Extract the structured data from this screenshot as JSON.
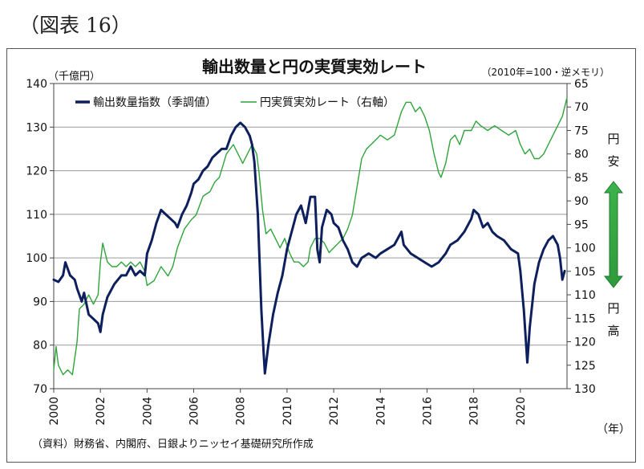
{
  "figure_label": "（図表 16）",
  "chart_data": {
    "type": "line",
    "title": "輸出数量と円の実質実効レート",
    "left_unit": "（千億円）",
    "right_unit": "（2010年=100・逆メモリ）",
    "x_unit": "（年）",
    "source": "（資料）財務省、内閣府、日銀よりニッセイ基礎研究所作成",
    "yen_weak_label": [
      "円",
      "安"
    ],
    "yen_strong_label": [
      "円",
      "高"
    ],
    "legend_position": "top-left",
    "grid": true,
    "xlim": [
      2000,
      2022
    ],
    "x_ticks": [
      2000,
      2002,
      2004,
      2006,
      2008,
      2010,
      2012,
      2014,
      2016,
      2018,
      2020
    ],
    "ylim_left": [
      70,
      140
    ],
    "y_ticks_left": [
      70,
      80,
      90,
      100,
      110,
      120,
      130,
      140
    ],
    "ylim_right": [
      65,
      130
    ],
    "right_axis_inverted": true,
    "y_ticks_right": [
      65,
      70,
      75,
      80,
      85,
      90,
      95,
      100,
      105,
      110,
      115,
      120,
      125,
      130
    ],
    "series": [
      {
        "name": "輸出数量指数（季調値）",
        "axis": "left",
        "color": "#0d1f5c",
        "points": [
          [
            2000.0,
            95
          ],
          [
            2000.2,
            94.5
          ],
          [
            2000.4,
            96
          ],
          [
            2000.5,
            99
          ],
          [
            2000.7,
            96
          ],
          [
            2000.9,
            95
          ],
          [
            2001.0,
            93
          ],
          [
            2001.2,
            90
          ],
          [
            2001.3,
            92
          ],
          [
            2001.5,
            87
          ],
          [
            2001.7,
            86
          ],
          [
            2001.9,
            85
          ],
          [
            2002.0,
            83
          ],
          [
            2002.1,
            87
          ],
          [
            2002.3,
            91
          ],
          [
            2002.6,
            94
          ],
          [
            2002.9,
            96
          ],
          [
            2003.1,
            96
          ],
          [
            2003.3,
            98
          ],
          [
            2003.5,
            96
          ],
          [
            2003.7,
            97
          ],
          [
            2003.9,
            96
          ],
          [
            2004.0,
            101
          ],
          [
            2004.2,
            104
          ],
          [
            2004.4,
            108
          ],
          [
            2004.6,
            111
          ],
          [
            2004.8,
            110
          ],
          [
            2005.0,
            109
          ],
          [
            2005.2,
            108
          ],
          [
            2005.3,
            107
          ],
          [
            2005.5,
            110
          ],
          [
            2005.7,
            112
          ],
          [
            2005.9,
            115
          ],
          [
            2006.0,
            117
          ],
          [
            2006.2,
            118
          ],
          [
            2006.4,
            120
          ],
          [
            2006.6,
            121
          ],
          [
            2006.8,
            123
          ],
          [
            2007.0,
            124
          ],
          [
            2007.2,
            125
          ],
          [
            2007.4,
            125
          ],
          [
            2007.6,
            128
          ],
          [
            2007.8,
            130
          ],
          [
            2008.0,
            131
          ],
          [
            2008.2,
            130
          ],
          [
            2008.4,
            128
          ],
          [
            2008.5,
            126
          ],
          [
            2008.6,
            122
          ],
          [
            2008.75,
            110
          ],
          [
            2008.9,
            88
          ],
          [
            2009.0,
            78
          ],
          [
            2009.05,
            73.5
          ],
          [
            2009.2,
            80
          ],
          [
            2009.4,
            87
          ],
          [
            2009.6,
            92
          ],
          [
            2009.8,
            96
          ],
          [
            2010.0,
            102
          ],
          [
            2010.2,
            106
          ],
          [
            2010.4,
            110
          ],
          [
            2010.6,
            112
          ],
          [
            2010.8,
            108
          ],
          [
            2011.0,
            114
          ],
          [
            2011.2,
            114
          ],
          [
            2011.3,
            102
          ],
          [
            2011.4,
            99
          ],
          [
            2011.5,
            107
          ],
          [
            2011.7,
            111
          ],
          [
            2011.9,
            110
          ],
          [
            2012.0,
            108
          ],
          [
            2012.2,
            107
          ],
          [
            2012.4,
            104
          ],
          [
            2012.6,
            102
          ],
          [
            2012.8,
            99
          ],
          [
            2013.0,
            98
          ],
          [
            2013.2,
            100
          ],
          [
            2013.5,
            101
          ],
          [
            2013.8,
            100
          ],
          [
            2014.0,
            101
          ],
          [
            2014.3,
            102
          ],
          [
            2014.6,
            103
          ],
          [
            2014.9,
            106
          ],
          [
            2015.0,
            103
          ],
          [
            2015.3,
            101
          ],
          [
            2015.6,
            100
          ],
          [
            2015.9,
            99
          ],
          [
            2016.2,
            98
          ],
          [
            2016.5,
            99
          ],
          [
            2016.8,
            101
          ],
          [
            2017.0,
            103
          ],
          [
            2017.3,
            104
          ],
          [
            2017.6,
            106
          ],
          [
            2017.9,
            109
          ],
          [
            2018.0,
            111
          ],
          [
            2018.2,
            110
          ],
          [
            2018.4,
            107
          ],
          [
            2018.6,
            108
          ],
          [
            2018.8,
            106
          ],
          [
            2019.0,
            105
          ],
          [
            2019.3,
            104
          ],
          [
            2019.6,
            102
          ],
          [
            2019.9,
            101
          ],
          [
            2020.0,
            97
          ],
          [
            2020.15,
            88
          ],
          [
            2020.3,
            76
          ],
          [
            2020.4,
            84
          ],
          [
            2020.6,
            94
          ],
          [
            2020.8,
            99
          ],
          [
            2021.0,
            102
          ],
          [
            2021.2,
            104
          ],
          [
            2021.4,
            105
          ],
          [
            2021.6,
            103
          ],
          [
            2021.7,
            100
          ],
          [
            2021.8,
            95
          ],
          [
            2021.9,
            97
          ]
        ]
      },
      {
        "name": "円実質実効レート（右軸）",
        "axis": "right",
        "color": "#2ea43a",
        "points": [
          [
            2000.0,
            126
          ],
          [
            2000.1,
            121
          ],
          [
            2000.2,
            125
          ],
          [
            2000.4,
            127
          ],
          [
            2000.6,
            126
          ],
          [
            2000.8,
            127
          ],
          [
            2001.0,
            120
          ],
          [
            2001.1,
            113
          ],
          [
            2001.3,
            112
          ],
          [
            2001.5,
            110
          ],
          [
            2001.7,
            112
          ],
          [
            2001.9,
            110
          ],
          [
            2002.0,
            103
          ],
          [
            2002.1,
            99
          ],
          [
            2002.3,
            103
          ],
          [
            2002.5,
            104
          ],
          [
            2002.7,
            104
          ],
          [
            2002.9,
            103
          ],
          [
            2003.1,
            104
          ],
          [
            2003.3,
            103
          ],
          [
            2003.5,
            104
          ],
          [
            2003.7,
            103
          ],
          [
            2003.9,
            105
          ],
          [
            2004.0,
            108
          ],
          [
            2004.3,
            107
          ],
          [
            2004.6,
            104
          ],
          [
            2004.9,
            106
          ],
          [
            2005.1,
            104
          ],
          [
            2005.3,
            100
          ],
          [
            2005.6,
            96
          ],
          [
            2005.9,
            94
          ],
          [
            2006.1,
            93
          ],
          [
            2006.4,
            89
          ],
          [
            2006.7,
            88
          ],
          [
            2006.9,
            86
          ],
          [
            2007.1,
            85
          ],
          [
            2007.4,
            80
          ],
          [
            2007.7,
            78
          ],
          [
            2007.9,
            80
          ],
          [
            2008.1,
            82
          ],
          [
            2008.3,
            80
          ],
          [
            2008.5,
            78
          ],
          [
            2008.7,
            80
          ],
          [
            2008.8,
            84
          ],
          [
            2008.95,
            92
          ],
          [
            2009.1,
            97
          ],
          [
            2009.3,
            96
          ],
          [
            2009.5,
            98
          ],
          [
            2009.7,
            100
          ],
          [
            2009.9,
            98
          ],
          [
            2010.1,
            101
          ],
          [
            2010.3,
            103
          ],
          [
            2010.5,
            103
          ],
          [
            2010.7,
            104
          ],
          [
            2010.9,
            103
          ],
          [
            2011.0,
            100
          ],
          [
            2011.2,
            98
          ],
          [
            2011.4,
            98
          ],
          [
            2011.6,
            99
          ],
          [
            2011.8,
            101
          ],
          [
            2012.0,
            100
          ],
          [
            2012.2,
            99
          ],
          [
            2012.4,
            98
          ],
          [
            2012.6,
            96
          ],
          [
            2012.8,
            93
          ],
          [
            2013.0,
            87
          ],
          [
            2013.2,
            81
          ],
          [
            2013.4,
            79
          ],
          [
            2013.6,
            78
          ],
          [
            2013.8,
            77
          ],
          [
            2014.0,
            76
          ],
          [
            2014.3,
            77
          ],
          [
            2014.6,
            76
          ],
          [
            2014.9,
            71
          ],
          [
            2015.1,
            69
          ],
          [
            2015.3,
            69
          ],
          [
            2015.5,
            71
          ],
          [
            2015.7,
            70
          ],
          [
            2015.9,
            72
          ],
          [
            2016.1,
            75
          ],
          [
            2016.3,
            80
          ],
          [
            2016.5,
            84
          ],
          [
            2016.6,
            85
          ],
          [
            2016.8,
            82
          ],
          [
            2017.0,
            77
          ],
          [
            2017.2,
            76
          ],
          [
            2017.4,
            78
          ],
          [
            2017.6,
            75
          ],
          [
            2017.9,
            75
          ],
          [
            2018.1,
            73
          ],
          [
            2018.3,
            74
          ],
          [
            2018.6,
            75
          ],
          [
            2018.9,
            74
          ],
          [
            2019.2,
            75
          ],
          [
            2019.5,
            76
          ],
          [
            2019.8,
            75
          ],
          [
            2020.0,
            78
          ],
          [
            2020.2,
            80
          ],
          [
            2020.4,
            79
          ],
          [
            2020.6,
            81
          ],
          [
            2020.8,
            81
          ],
          [
            2021.0,
            80
          ],
          [
            2021.2,
            78
          ],
          [
            2021.4,
            76
          ],
          [
            2021.6,
            74
          ],
          [
            2021.8,
            72
          ],
          [
            2021.9,
            70
          ],
          [
            2022.0,
            68
          ]
        ]
      }
    ]
  }
}
